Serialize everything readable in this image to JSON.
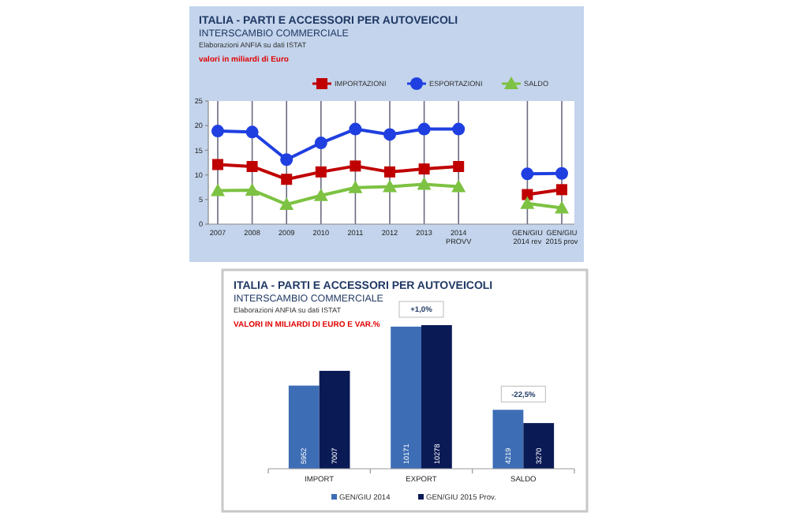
{
  "chart_data": [
    {
      "type": "line",
      "title": "ITALIA - PARTI E ACCESSORI PER AUTOVEICOLI",
      "subtitle": "INTERSCAMBIO COMMERCIALE",
      "annotations": [
        "Elaborazioni ANFIA su dati ISTAT",
        "valori in miliardi di Euro"
      ],
      "categories": [
        "2007",
        "2008",
        "2009",
        "2010",
        "2011",
        "2012",
        "2013",
        "2014 PROVV",
        null,
        "GEN/GIU 2014 rev",
        "GEN/GIU 2015 prov"
      ],
      "series": [
        {
          "name": "IMPORTAZIONI",
          "color": "#c00000",
          "marker": "square",
          "values": [
            12.1,
            11.7,
            9.1,
            10.6,
            11.8,
            10.6,
            11.2,
            11.7,
            null,
            6.0,
            7.0
          ]
        },
        {
          "name": "ESPORTAZIONI",
          "color": "#1f3fe0",
          "marker": "circle",
          "values": [
            18.9,
            18.7,
            13.1,
            16.5,
            19.3,
            18.2,
            19.3,
            19.3,
            null,
            10.2,
            10.3
          ]
        },
        {
          "name": "SALDO",
          "color": "#7dc242",
          "marker": "triangle",
          "values": [
            6.8,
            6.9,
            4.0,
            5.8,
            7.4,
            7.6,
            8.1,
            7.6,
            null,
            4.2,
            3.3
          ]
        }
      ],
      "ylim": [
        0,
        25
      ],
      "yticks": [
        0,
        5,
        10,
        15,
        20,
        25
      ],
      "grid": "x",
      "legend": "top"
    },
    {
      "type": "bar",
      "title": "ITALIA - PARTI E ACCESSORI PER AUTOVEICOLI",
      "subtitle": "INTERSCAMBIO COMMERCIALE",
      "annotations": [
        "Elaborazioni ANFIA su dati ISTAT",
        "VALORI IN MILIARDI DI EURO E VAR.%",
        "+1,0%",
        "-22,5%"
      ],
      "categories": [
        "IMPORT",
        "EXPORT",
        "SALDO"
      ],
      "series": [
        {
          "name": "GEN/GIU 2014",
          "color": "#3d6db5",
          "values": [
            5952,
            10171,
            4219
          ]
        },
        {
          "name": "GEN/GIU 2015 Prov.",
          "color": "#0a1a55",
          "values": [
            7007,
            10278,
            3270
          ]
        }
      ],
      "data_labels": true,
      "legend": "bottom"
    }
  ]
}
